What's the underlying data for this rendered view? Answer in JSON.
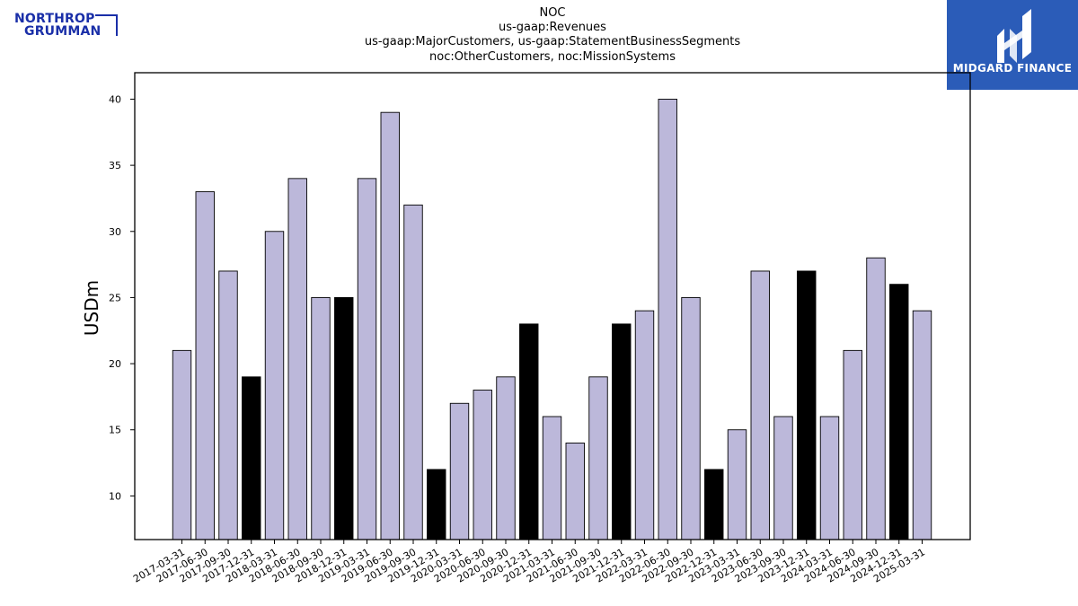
{
  "logos": {
    "left_line1": "NORTHROP",
    "left_line2": "GRUMMAN",
    "left_color": "#1a2fa8",
    "right_text": "MIDGARD FINANCE",
    "right_bg": "#2b5cb8",
    "right_emblem_icon": "midgard-emblem-icon"
  },
  "chart_data": {
    "type": "bar",
    "title_lines": [
      "NOC",
      "us-gaap:Revenues",
      "us-gaap:MajorCustomers, us-gaap:StatementBusinessSegments",
      "noc:OtherCustomers, noc:MissionSystems"
    ],
    "xlabel": "",
    "ylabel": "USDm",
    "ylim": [
      6.7,
      42
    ],
    "yticks": [
      10,
      15,
      20,
      25,
      30,
      35,
      40
    ],
    "grid": false,
    "bar_color": "#bcb8da",
    "highlight_color": "#000000",
    "categories": [
      "2017-03-31",
      "2017-06-30",
      "2017-09-30",
      "2017-12-31",
      "2018-03-31",
      "2018-06-30",
      "2018-09-30",
      "2018-12-31",
      "2019-03-31",
      "2019-06-30",
      "2019-09-30",
      "2019-12-31",
      "2020-03-31",
      "2020-06-30",
      "2020-09-30",
      "2020-12-31",
      "2021-03-31",
      "2021-06-30",
      "2021-09-30",
      "2021-12-31",
      "2022-03-31",
      "2022-06-30",
      "2022-09-30",
      "2022-12-31",
      "2023-03-31",
      "2023-06-30",
      "2023-09-30",
      "2023-12-31",
      "2024-03-31",
      "2024-06-30",
      "2024-09-30",
      "2024-12-31",
      "2025-03-31"
    ],
    "values": [
      21,
      33,
      27,
      19,
      30,
      34,
      25,
      25,
      34,
      39,
      32,
      12,
      17,
      18,
      19,
      23,
      16,
      14,
      19,
      23,
      24,
      40,
      25,
      12,
      15,
      27,
      16,
      27,
      16,
      21,
      28,
      26,
      24
    ],
    "highlighted": [
      false,
      false,
      false,
      true,
      false,
      false,
      false,
      true,
      false,
      false,
      false,
      true,
      false,
      false,
      false,
      true,
      false,
      false,
      false,
      true,
      false,
      false,
      false,
      true,
      false,
      false,
      false,
      true,
      false,
      false,
      false,
      true,
      false
    ]
  }
}
